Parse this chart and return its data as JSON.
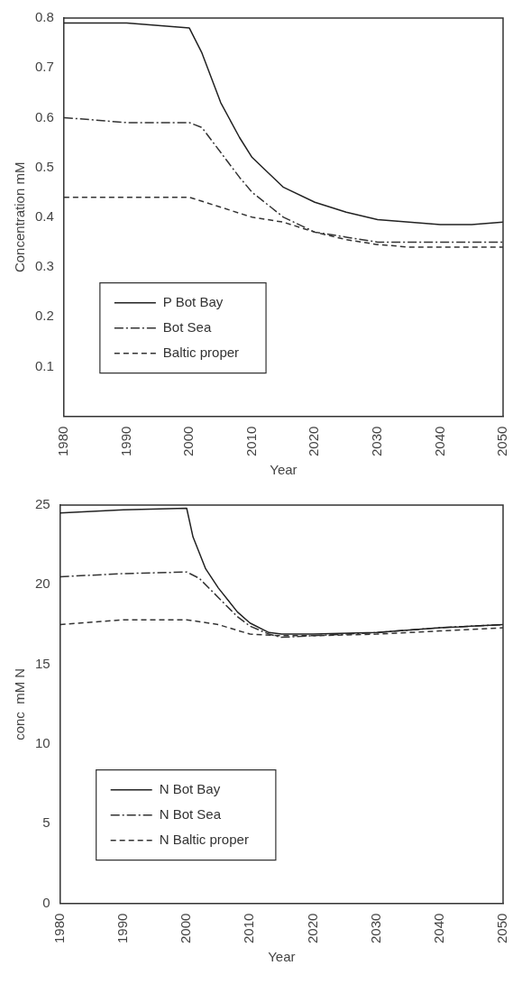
{
  "chart_data": [
    {
      "type": "line",
      "xlabel": "Year",
      "ylabel": "Concentration mM",
      "xlim": [
        1980,
        2050
      ],
      "xticks": [
        1980,
        1990,
        2000,
        2010,
        2020,
        2030,
        2040,
        2050
      ],
      "ylim": [
        0,
        0.8
      ],
      "yticks": [
        0.1,
        0.2,
        0.3,
        0.4,
        0.5,
        0.6,
        0.7,
        0.8
      ],
      "grid": false,
      "legend": "bottom left",
      "marker": "none",
      "series": [
        {
          "name": "P Bot Bay",
          "color": "#222222",
          "line_style": "solid",
          "x": [
            1980,
            1990,
            2000,
            2002,
            2005,
            2008,
            2010,
            2015,
            2020,
            2025,
            2030,
            2035,
            2040,
            2045,
            2050
          ],
          "values": [
            0.79,
            0.79,
            0.78,
            0.73,
            0.63,
            0.56,
            0.52,
            0.46,
            0.43,
            0.41,
            0.395,
            0.39,
            0.385,
            0.385,
            0.39
          ]
        },
        {
          "name": "Bot Sea",
          "color": "#333333",
          "line_style": "dashdot",
          "x": [
            1980,
            1990,
            2000,
            2002,
            2005,
            2008,
            2010,
            2013,
            2015,
            2020,
            2025,
            2030,
            2040,
            2050
          ],
          "values": [
            0.6,
            0.59,
            0.59,
            0.58,
            0.53,
            0.48,
            0.45,
            0.42,
            0.4,
            0.37,
            0.36,
            0.35,
            0.35,
            0.35
          ]
        },
        {
          "name": "Baltic proper",
          "color": "#333333",
          "line_style": "dashed",
          "x": [
            1980,
            2000,
            2005,
            2010,
            2015,
            2020,
            2025,
            2030,
            2035,
            2050
          ],
          "values": [
            0.44,
            0.44,
            0.42,
            0.4,
            0.39,
            0.37,
            0.355,
            0.345,
            0.34,
            0.34
          ]
        }
      ]
    },
    {
      "type": "line",
      "xlabel": "Year",
      "ylabel": "conc  mM N",
      "xlim": [
        1980,
        2050
      ],
      "xticks": [
        1980,
        1990,
        2000,
        2010,
        2020,
        2030,
        2040,
        2050
      ],
      "ylim": [
        0,
        25
      ],
      "yticks": [
        0,
        5,
        10,
        15,
        20,
        25
      ],
      "grid": false,
      "legend": "bottom left",
      "marker": "none",
      "series": [
        {
          "name": "N Bot Bay",
          "color": "#222222",
          "line_style": "solid",
          "x": [
            1980,
            1990,
            2000,
            2001,
            2003,
            2005,
            2008,
            2010,
            2013,
            2015,
            2020,
            2030,
            2040,
            2050
          ],
          "values": [
            24.5,
            24.7,
            24.8,
            23,
            21,
            19.8,
            18.3,
            17.6,
            17,
            16.9,
            16.9,
            17,
            17.3,
            17.5
          ]
        },
        {
          "name": "N Bot Sea",
          "color": "#333333",
          "line_style": "dashdot",
          "x": [
            1980,
            1990,
            2000,
            2002,
            2005,
            2008,
            2010,
            2013,
            2015,
            2020,
            2030,
            2040,
            2050
          ],
          "values": [
            20.5,
            20.7,
            20.8,
            20.4,
            19.2,
            18,
            17.4,
            16.9,
            16.7,
            16.8,
            17,
            17.3,
            17.5
          ]
        },
        {
          "name": "N Baltic proper",
          "color": "#333333",
          "line_style": "dashed",
          "x": [
            1980,
            1990,
            2000,
            2005,
            2010,
            2015,
            2020,
            2030,
            2040,
            2050
          ],
          "values": [
            17.5,
            17.8,
            17.8,
            17.5,
            16.9,
            16.8,
            16.8,
            16.9,
            17.1,
            17.3
          ]
        }
      ]
    }
  ]
}
